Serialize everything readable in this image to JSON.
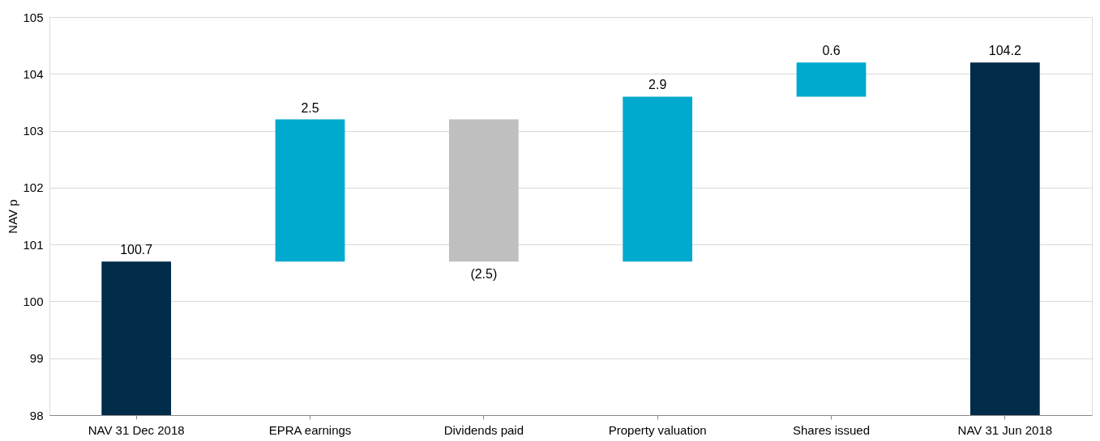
{
  "chart_data": {
    "type": "bar",
    "ylabel": "NAV p",
    "categories": [
      "NAV 31 Dec 2018",
      "EPRA earnings",
      "Dividends paid",
      "Property valuation",
      "Shares issued",
      "NAV 31 Jun 2018"
    ],
    "values": [
      100.7,
      2.5,
      -2.5,
      2.9,
      0.6,
      104.2
    ],
    "base": [
      null,
      100.7,
      103.2,
      100.7,
      103.6,
      null
    ],
    "colors": [
      "#002b49",
      "#00a9ce",
      "#bfbfbf",
      "#00a9ce",
      "#00a9ce",
      "#002b49"
    ],
    "value_labels": [
      "100.7",
      "2.5",
      "(2.5)",
      "2.9",
      "0.6",
      "104.2"
    ],
    "ylim": [
      98,
      105
    ],
    "yticks": [
      98,
      99,
      100,
      101,
      102,
      103,
      104,
      105
    ],
    "grid": "y"
  }
}
